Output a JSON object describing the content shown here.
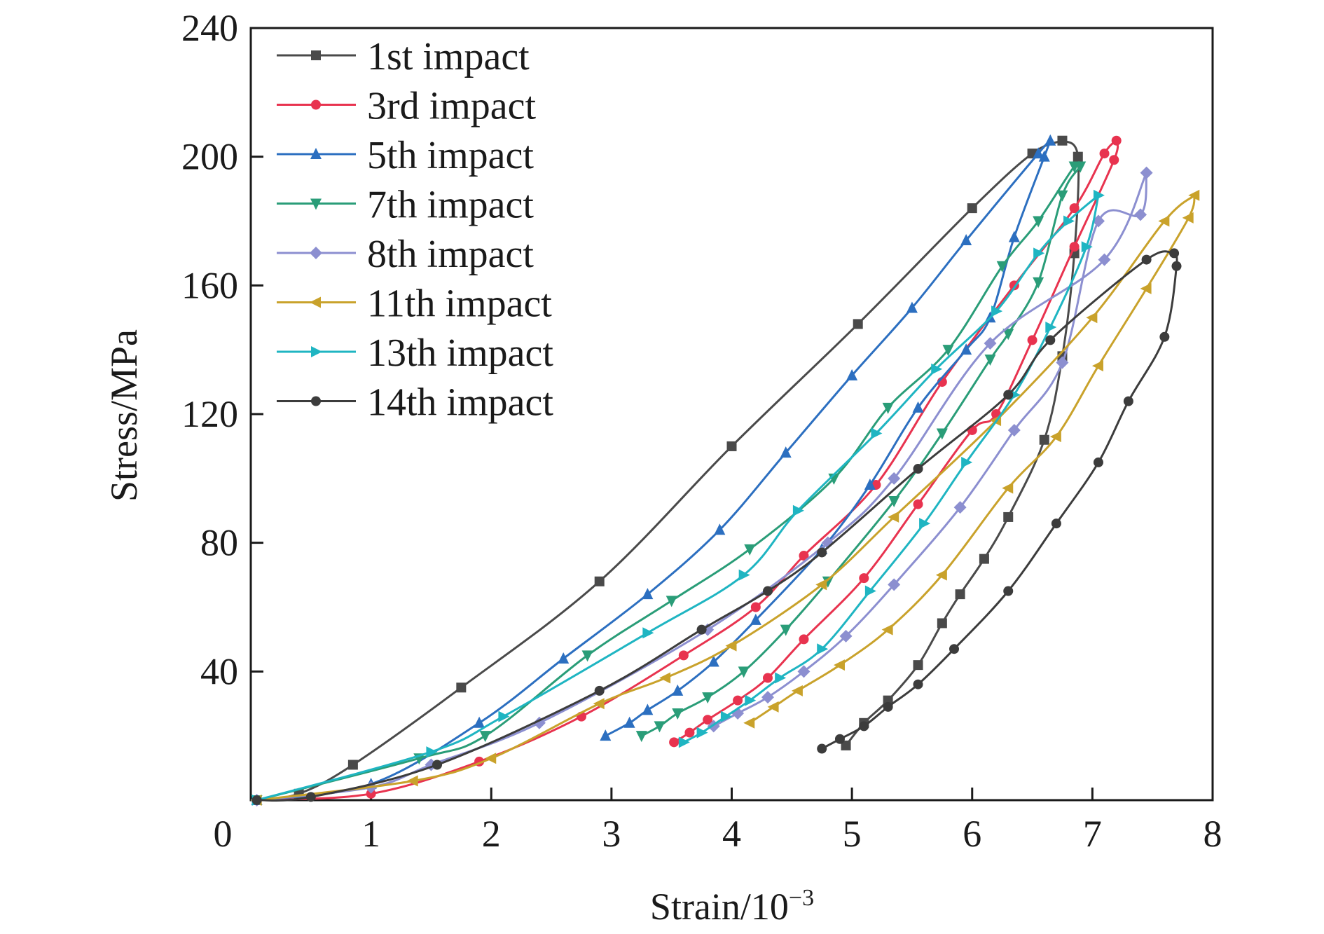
{
  "chart_data": {
    "type": "line",
    "title": "",
    "xlabel": "Strain/10",
    "xlabel_exponent": "−3",
    "ylabel": "Stress/MPa",
    "xlim": [
      0,
      8
    ],
    "ylim": [
      0,
      240
    ],
    "xticks": [
      "0",
      "1",
      "2",
      "3",
      "4",
      "5",
      "6",
      "7",
      "8"
    ],
    "yticks": [
      "40",
      "80",
      "120",
      "160",
      "200",
      "240"
    ],
    "grid": false,
    "legend_position": "top-left",
    "series": [
      {
        "name": "1st impact",
        "color": "#4a4a4a",
        "marker": "square",
        "loading": [
          [
            0.05,
            0
          ],
          [
            0.4,
            2
          ],
          [
            0.85,
            11
          ],
          [
            1.75,
            35
          ],
          [
            2.9,
            68
          ],
          [
            4.0,
            110
          ],
          [
            5.05,
            148
          ],
          [
            6.0,
            184
          ],
          [
            6.5,
            201
          ],
          [
            6.75,
            205
          ]
        ],
        "unloading": [
          [
            6.75,
            205
          ],
          [
            6.88,
            200
          ],
          [
            6.85,
            170
          ],
          [
            6.75,
            138
          ],
          [
            6.6,
            112
          ],
          [
            6.3,
            88
          ],
          [
            6.1,
            75
          ],
          [
            5.9,
            64
          ],
          [
            5.75,
            55
          ],
          [
            5.55,
            42
          ],
          [
            5.3,
            31
          ],
          [
            5.1,
            24
          ],
          [
            4.95,
            17
          ]
        ]
      },
      {
        "name": "3rd impact",
        "color": "#e8334f",
        "marker": "circle",
        "loading": [
          [
            0.05,
            0
          ],
          [
            1.0,
            2
          ],
          [
            1.9,
            12
          ],
          [
            2.75,
            26
          ],
          [
            3.6,
            45
          ],
          [
            4.2,
            60
          ],
          [
            4.6,
            76
          ],
          [
            5.2,
            98
          ],
          [
            5.75,
            130
          ],
          [
            6.35,
            160
          ],
          [
            6.85,
            184
          ],
          [
            7.1,
            201
          ],
          [
            7.2,
            205
          ]
        ],
        "unloading": [
          [
            7.2,
            205
          ],
          [
            7.18,
            199
          ],
          [
            6.85,
            172
          ],
          [
            6.5,
            143
          ],
          [
            6.2,
            120
          ],
          [
            6.0,
            115
          ],
          [
            5.55,
            92
          ],
          [
            5.1,
            69
          ],
          [
            4.6,
            50
          ],
          [
            4.3,
            38
          ],
          [
            4.05,
            31
          ],
          [
            3.8,
            25
          ],
          [
            3.65,
            21
          ],
          [
            3.52,
            18
          ]
        ]
      },
      {
        "name": "5th impact",
        "color": "#2c6fc0",
        "marker": "triangle-up",
        "loading": [
          [
            0.05,
            0
          ],
          [
            1.0,
            5
          ],
          [
            1.9,
            24
          ],
          [
            2.6,
            44
          ],
          [
            3.3,
            64
          ],
          [
            3.9,
            84
          ],
          [
            4.45,
            108
          ],
          [
            5.0,
            132
          ],
          [
            5.5,
            153
          ],
          [
            5.95,
            174
          ],
          [
            6.55,
            201
          ],
          [
            6.65,
            205
          ]
        ],
        "unloading": [
          [
            6.65,
            205
          ],
          [
            6.6,
            200
          ],
          [
            6.35,
            175
          ],
          [
            6.15,
            150
          ],
          [
            5.95,
            140
          ],
          [
            5.55,
            122
          ],
          [
            5.15,
            98
          ],
          [
            4.75,
            78
          ],
          [
            4.2,
            56
          ],
          [
            3.85,
            43
          ],
          [
            3.55,
            34
          ],
          [
            3.3,
            28
          ],
          [
            3.15,
            24
          ],
          [
            2.95,
            20
          ]
        ]
      },
      {
        "name": "7th impact",
        "color": "#2a9d78",
        "marker": "triangle-down",
        "loading": [
          [
            0.05,
            0
          ],
          [
            1.4,
            13
          ],
          [
            1.95,
            20
          ],
          [
            2.8,
            45
          ],
          [
            3.5,
            62
          ],
          [
            4.15,
            78
          ],
          [
            4.85,
            100
          ],
          [
            5.3,
            122
          ],
          [
            5.8,
            140
          ],
          [
            6.25,
            166
          ],
          [
            6.55,
            180
          ],
          [
            6.85,
            197
          ],
          [
            6.9,
            197
          ]
        ],
        "unloading": [
          [
            6.9,
            197
          ],
          [
            6.75,
            188
          ],
          [
            6.55,
            161
          ],
          [
            6.3,
            145
          ],
          [
            6.15,
            137
          ],
          [
            5.75,
            114
          ],
          [
            5.35,
            93
          ],
          [
            4.8,
            68
          ],
          [
            4.45,
            53
          ],
          [
            4.1,
            40
          ],
          [
            3.8,
            32
          ],
          [
            3.55,
            27
          ],
          [
            3.4,
            23
          ],
          [
            3.25,
            20
          ]
        ]
      },
      {
        "name": "8th impact",
        "color": "#8c8fd0",
        "marker": "diamond",
        "loading": [
          [
            0.05,
            0
          ],
          [
            1.0,
            4
          ],
          [
            1.5,
            11
          ],
          [
            2.4,
            24
          ],
          [
            3.8,
            53
          ],
          [
            4.8,
            80
          ],
          [
            5.35,
            100
          ],
          [
            6.15,
            142
          ],
          [
            7.1,
            168
          ],
          [
            7.45,
            195
          ]
        ],
        "unloading": [
          [
            7.45,
            195
          ],
          [
            7.4,
            182
          ],
          [
            7.05,
            180
          ],
          [
            6.75,
            136
          ],
          [
            6.35,
            115
          ],
          [
            5.9,
            91
          ],
          [
            5.35,
            67
          ],
          [
            4.95,
            51
          ],
          [
            4.6,
            40
          ],
          [
            4.3,
            32
          ],
          [
            4.05,
            27
          ],
          [
            3.85,
            23
          ]
        ]
      },
      {
        "name": "11th impact",
        "color": "#c9a22b",
        "marker": "triangle-left",
        "loading": [
          [
            0.05,
            0
          ],
          [
            1.35,
            6
          ],
          [
            2.0,
            13
          ],
          [
            2.9,
            30
          ],
          [
            3.45,
            38
          ],
          [
            4.0,
            48
          ],
          [
            4.75,
            67
          ],
          [
            5.35,
            88
          ],
          [
            6.2,
            118
          ],
          [
            7.0,
            150
          ],
          [
            7.6,
            180
          ],
          [
            7.85,
            188
          ]
        ],
        "unloading": [
          [
            7.85,
            188
          ],
          [
            7.8,
            181
          ],
          [
            7.45,
            159
          ],
          [
            7.05,
            135
          ],
          [
            6.7,
            113
          ],
          [
            6.3,
            97
          ],
          [
            5.75,
            70
          ],
          [
            5.3,
            53
          ],
          [
            4.9,
            42
          ],
          [
            4.55,
            34
          ],
          [
            4.35,
            29
          ],
          [
            4.15,
            24
          ]
        ]
      },
      {
        "name": "13th impact",
        "color": "#1fb5c2",
        "marker": "triangle-right",
        "loading": [
          [
            0.05,
            0
          ],
          [
            1.5,
            15
          ],
          [
            2.1,
            26
          ],
          [
            3.3,
            52
          ],
          [
            4.1,
            70
          ],
          [
            4.55,
            90
          ],
          [
            5.2,
            114
          ],
          [
            5.7,
            134
          ],
          [
            6.2,
            152
          ],
          [
            6.55,
            170
          ],
          [
            6.8,
            180
          ],
          [
            7.05,
            188
          ]
        ],
        "unloading": [
          [
            7.05,
            188
          ],
          [
            6.95,
            172
          ],
          [
            6.65,
            147
          ],
          [
            6.35,
            126
          ],
          [
            5.95,
            105
          ],
          [
            5.6,
            86
          ],
          [
            5.15,
            65
          ],
          [
            4.75,
            47
          ],
          [
            4.4,
            38
          ],
          [
            4.15,
            31
          ],
          [
            3.95,
            26
          ],
          [
            3.75,
            21
          ],
          [
            3.6,
            18
          ]
        ]
      },
      {
        "name": "14th impact",
        "color": "#3c3c3c",
        "marker": "circle",
        "loading": [
          [
            0.05,
            0
          ],
          [
            0.5,
            1
          ],
          [
            1.55,
            11
          ],
          [
            2.9,
            34
          ],
          [
            3.75,
            53
          ],
          [
            4.3,
            65
          ],
          [
            4.75,
            77
          ],
          [
            5.55,
            103
          ],
          [
            6.3,
            126
          ],
          [
            6.65,
            143
          ],
          [
            7.45,
            168
          ],
          [
            7.68,
            170
          ]
        ],
        "unloading": [
          [
            7.68,
            170
          ],
          [
            7.7,
            166
          ],
          [
            7.6,
            144
          ],
          [
            7.3,
            124
          ],
          [
            7.05,
            105
          ],
          [
            6.7,
            86
          ],
          [
            6.3,
            65
          ],
          [
            5.85,
            47
          ],
          [
            5.55,
            36
          ],
          [
            5.3,
            29
          ],
          [
            5.1,
            23
          ],
          [
            4.9,
            19
          ],
          [
            4.75,
            16
          ]
        ]
      }
    ]
  }
}
